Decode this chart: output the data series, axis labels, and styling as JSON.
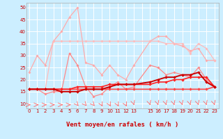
{
  "background_color": "#cceeff",
  "grid_color": "#ffffff",
  "x_tick_labels": [
    "0",
    "1",
    "2",
    "3",
    "4",
    "5",
    "6",
    "7",
    "8",
    "9",
    "10",
    "11",
    "12",
    "13",
    "",
    "15",
    "16",
    "17",
    "18",
    "19",
    "20",
    "21",
    "22",
    "23"
  ],
  "x_tick_pos": [
    0,
    1,
    2,
    3,
    4,
    5,
    6,
    7,
    8,
    9,
    10,
    11,
    12,
    13,
    14,
    15,
    16,
    17,
    18,
    19,
    20,
    21,
    22,
    23
  ],
  "xlabel": "Vent moyen/en rafales ( km/h )",
  "ylim": [
    8,
    52
  ],
  "yticks": [
    10,
    15,
    20,
    25,
    30,
    35,
    40,
    45,
    50
  ],
  "xlim": [
    -0.3,
    23.5
  ],
  "series": [
    {
      "color": "#ffaaaa",
      "lw": 0.9,
      "marker": "D",
      "ms": 1.8,
      "x": [
        0,
        1,
        2,
        3,
        4,
        5,
        6,
        7,
        8,
        9,
        10,
        11,
        12,
        13,
        15,
        16,
        17,
        18,
        19,
        20,
        21,
        22,
        23
      ],
      "y": [
        23,
        30,
        26,
        36,
        40,
        46,
        50,
        27,
        26,
        22,
        26,
        22,
        20,
        26,
        36,
        38,
        38,
        35,
        34,
        32,
        33,
        28,
        28
      ]
    },
    {
      "color": "#ffbbbb",
      "lw": 0.9,
      "marker": "D",
      "ms": 1.8,
      "x": [
        0,
        1,
        2,
        3,
        4,
        5,
        6,
        7,
        8,
        9,
        10,
        11,
        12,
        13,
        15,
        16,
        17,
        18,
        19,
        20,
        21,
        22,
        23
      ],
      "y": [
        16,
        16,
        16,
        36,
        36,
        36,
        36,
        36,
        36,
        36,
        36,
        36,
        36,
        36,
        36,
        36,
        35,
        35,
        35,
        31,
        35,
        33,
        28
      ]
    },
    {
      "color": "#ff8888",
      "lw": 0.9,
      "marker": "D",
      "ms": 1.8,
      "x": [
        0,
        1,
        2,
        3,
        4,
        5,
        6,
        7,
        8,
        9,
        10,
        11,
        12,
        13,
        15,
        16,
        17,
        18,
        19,
        20,
        21,
        22,
        23
      ],
      "y": [
        16,
        16,
        14,
        15,
        15,
        31,
        26,
        17,
        13,
        14,
        17,
        19,
        16,
        17,
        26,
        25,
        22,
        23,
        22,
        21,
        25,
        20,
        17
      ]
    },
    {
      "color": "#ff4444",
      "lw": 1.2,
      "marker": "D",
      "ms": 2.0,
      "x": [
        0,
        1,
        2,
        3,
        4,
        5,
        6,
        7,
        8,
        9,
        10,
        11,
        12,
        13,
        15,
        16,
        17,
        18,
        19,
        20,
        21,
        22,
        23
      ],
      "y": [
        16,
        16,
        16,
        16,
        16,
        16,
        16,
        16,
        16,
        16,
        16,
        16,
        16,
        16,
        16,
        16,
        16,
        16,
        16,
        16,
        16,
        16,
        17
      ]
    },
    {
      "color": "#ff2222",
      "lw": 1.2,
      "marker": "D",
      "ms": 2.0,
      "x": [
        0,
        1,
        2,
        3,
        4,
        5,
        6,
        7,
        8,
        9,
        10,
        11,
        12,
        13,
        15,
        16,
        17,
        18,
        19,
        20,
        21,
        22,
        23
      ],
      "y": [
        16,
        16,
        16,
        16,
        16,
        16,
        17,
        17,
        17,
        17,
        18,
        18,
        18,
        18,
        18,
        19,
        19,
        20,
        20,
        21,
        21,
        21,
        17
      ]
    },
    {
      "color": "#cc0000",
      "lw": 1.4,
      "marker": "D",
      "ms": 2.0,
      "x": [
        0,
        1,
        2,
        3,
        4,
        5,
        6,
        7,
        8,
        9,
        10,
        11,
        12,
        13,
        15,
        16,
        17,
        18,
        19,
        20,
        21,
        22,
        23
      ],
      "y": [
        16,
        16,
        16,
        16,
        15,
        15,
        15,
        16,
        16,
        16,
        17,
        18,
        18,
        18,
        19,
        20,
        21,
        21,
        22,
        22,
        23,
        19,
        17
      ]
    }
  ],
  "tick_fontsize": 5.0,
  "axis_label_fontsize": 6.5
}
